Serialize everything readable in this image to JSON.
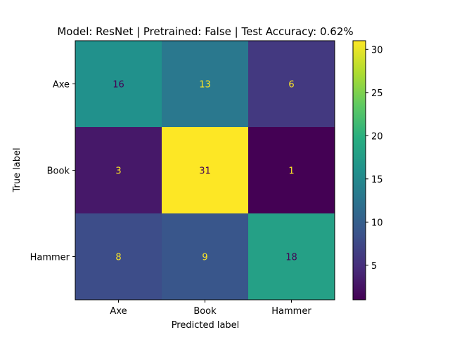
{
  "chart_data": {
    "type": "heatmap",
    "title": "Model: ResNet | Pretrained: False | Test Accuracy: 0.62%",
    "xlabel": "Predicted label",
    "ylabel": "True label",
    "x_categories": [
      "Axe",
      "Book",
      "Hammer"
    ],
    "y_categories": [
      "Axe",
      "Book",
      "Hammer"
    ],
    "matrix": [
      [
        16,
        13,
        6
      ],
      [
        3,
        31,
        1
      ],
      [
        8,
        9,
        18
      ]
    ],
    "colormap": "viridis",
    "color_range": [
      1,
      31
    ],
    "colorbar_ticks": [
      5,
      10,
      15,
      20,
      25,
      30
    ],
    "grid": false
  }
}
